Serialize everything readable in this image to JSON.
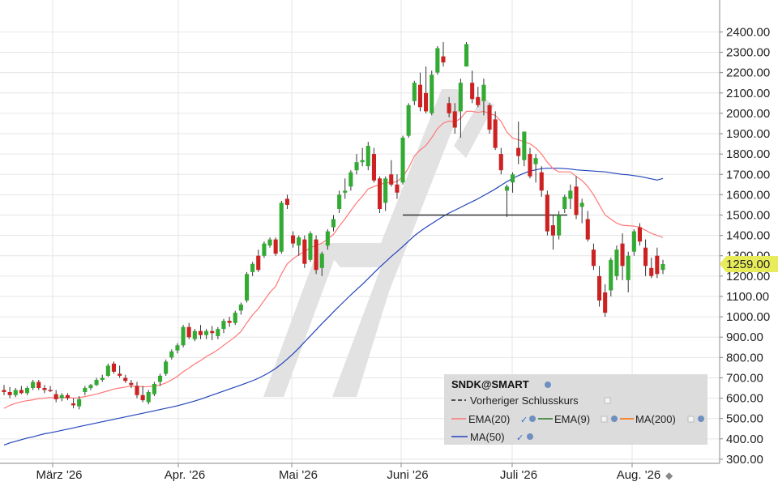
{
  "chart_data": {
    "type": "candlestick",
    "symbol": "SNDK@SMART",
    "y_range": [
      250,
      2420
    ],
    "y_ticks": [
      300,
      400,
      500,
      600,
      700,
      800,
      900,
      1000,
      1100,
      1200,
      1300,
      1400,
      1500,
      1600,
      1700,
      1800,
      1900,
      2000,
      2100,
      2200,
      2300,
      2400
    ],
    "y_tick_labels": [
      "300.00",
      "400.00",
      "500.00",
      "600.00",
      "700.00",
      "800.00",
      "900.00",
      "1000.00",
      "1100.00",
      "1200.00",
      "1300.00",
      "1400.00",
      "1500.00",
      "1600.00",
      "1700.00",
      "1800.00",
      "1900.00",
      "2000.00",
      "2100.00",
      "2200.00",
      "2300.00",
      "2400.00"
    ],
    "x_labels": [
      "März '26",
      "Apr. '26",
      "Mai '26",
      "Juni '26",
      "Juli '26",
      "Aug. '26"
    ],
    "last_price": 1259,
    "last_price_label": "1259.00",
    "colors": {
      "up": "#33aa33",
      "down": "#cc2222",
      "ema20": "#ff7777",
      "ema9": "#2a7a2a",
      "ma200": "#ff6a00",
      "ma50": "#2244bb",
      "tag": "#e8ec5a"
    },
    "grid": true,
    "candles": [
      {
        "o": 640,
        "h": 665,
        "l": 615,
        "c": 630
      },
      {
        "o": 630,
        "h": 655,
        "l": 600,
        "c": 615
      },
      {
        "o": 615,
        "h": 650,
        "l": 605,
        "c": 640
      },
      {
        "o": 640,
        "h": 660,
        "l": 620,
        "c": 625
      },
      {
        "o": 625,
        "h": 660,
        "l": 615,
        "c": 650
      },
      {
        "o": 650,
        "h": 690,
        "l": 640,
        "c": 680
      },
      {
        "o": 680,
        "h": 690,
        "l": 640,
        "c": 650
      },
      {
        "o": 650,
        "h": 665,
        "l": 625,
        "c": 640
      },
      {
        "o": 640,
        "h": 660,
        "l": 630,
        "c": 635
      },
      {
        "o": 620,
        "h": 640,
        "l": 580,
        "c": 595
      },
      {
        "o": 600,
        "h": 625,
        "l": 585,
        "c": 615
      },
      {
        "o": 615,
        "h": 625,
        "l": 590,
        "c": 600
      },
      {
        "o": 575,
        "h": 600,
        "l": 550,
        "c": 565
      },
      {
        "o": 560,
        "h": 610,
        "l": 545,
        "c": 595
      },
      {
        "o": 630,
        "h": 660,
        "l": 615,
        "c": 650
      },
      {
        "o": 650,
        "h": 670,
        "l": 640,
        "c": 665
      },
      {
        "o": 665,
        "h": 700,
        "l": 660,
        "c": 690
      },
      {
        "o": 690,
        "h": 715,
        "l": 680,
        "c": 700
      },
      {
        "o": 710,
        "h": 770,
        "l": 705,
        "c": 760
      },
      {
        "o": 770,
        "h": 780,
        "l": 720,
        "c": 730
      },
      {
        "o": 720,
        "h": 760,
        "l": 700,
        "c": 710
      },
      {
        "o": 700,
        "h": 715,
        "l": 675,
        "c": 685
      },
      {
        "o": 675,
        "h": 690,
        "l": 650,
        "c": 665
      },
      {
        "o": 660,
        "h": 680,
        "l": 600,
        "c": 615
      },
      {
        "o": 615,
        "h": 660,
        "l": 580,
        "c": 590
      },
      {
        "o": 580,
        "h": 640,
        "l": 570,
        "c": 630
      },
      {
        "o": 620,
        "h": 680,
        "l": 610,
        "c": 670
      },
      {
        "o": 680,
        "h": 720,
        "l": 660,
        "c": 710
      },
      {
        "o": 720,
        "h": 790,
        "l": 710,
        "c": 780
      },
      {
        "o": 800,
        "h": 840,
        "l": 790,
        "c": 830
      },
      {
        "o": 835,
        "h": 870,
        "l": 820,
        "c": 860
      },
      {
        "o": 860,
        "h": 960,
        "l": 850,
        "c": 950
      },
      {
        "o": 950,
        "h": 970,
        "l": 890,
        "c": 900
      },
      {
        "o": 890,
        "h": 940,
        "l": 880,
        "c": 930
      },
      {
        "o": 930,
        "h": 960,
        "l": 890,
        "c": 910
      },
      {
        "o": 910,
        "h": 940,
        "l": 890,
        "c": 930
      },
      {
        "o": 930,
        "h": 955,
        "l": 885,
        "c": 920
      },
      {
        "o": 905,
        "h": 950,
        "l": 890,
        "c": 940
      },
      {
        "o": 940,
        "h": 990,
        "l": 920,
        "c": 980
      },
      {
        "o": 980,
        "h": 1000,
        "l": 950,
        "c": 970
      },
      {
        "o": 970,
        "h": 1030,
        "l": 960,
        "c": 1020
      },
      {
        "o": 1030,
        "h": 1070,
        "l": 1010,
        "c": 1060
      },
      {
        "o": 1080,
        "h": 1220,
        "l": 1070,
        "c": 1210
      },
      {
        "o": 1220,
        "h": 1270,
        "l": 1200,
        "c": 1260
      },
      {
        "o": 1300,
        "h": 1330,
        "l": 1220,
        "c": 1230
      },
      {
        "o": 1300,
        "h": 1370,
        "l": 1290,
        "c": 1360
      },
      {
        "o": 1350,
        "h": 1390,
        "l": 1340,
        "c": 1380
      },
      {
        "o": 1380,
        "h": 1390,
        "l": 1300,
        "c": 1310
      },
      {
        "o": 1320,
        "h": 1570,
        "l": 1310,
        "c": 1560
      },
      {
        "o": 1580,
        "h": 1600,
        "l": 1530,
        "c": 1550
      },
      {
        "o": 1400,
        "h": 1420,
        "l": 1340,
        "c": 1360
      },
      {
        "o": 1350,
        "h": 1400,
        "l": 1300,
        "c": 1390
      },
      {
        "o": 1380,
        "h": 1400,
        "l": 1240,
        "c": 1260
      },
      {
        "o": 1280,
        "h": 1420,
        "l": 1270,
        "c": 1410
      },
      {
        "o": 1380,
        "h": 1400,
        "l": 1210,
        "c": 1230
      },
      {
        "o": 1240,
        "h": 1320,
        "l": 1200,
        "c": 1310
      },
      {
        "o": 1350,
        "h": 1430,
        "l": 1330,
        "c": 1420
      },
      {
        "o": 1440,
        "h": 1500,
        "l": 1420,
        "c": 1480
      },
      {
        "o": 1530,
        "h": 1620,
        "l": 1510,
        "c": 1600
      },
      {
        "o": 1610,
        "h": 1680,
        "l": 1580,
        "c": 1620
      },
      {
        "o": 1640,
        "h": 1720,
        "l": 1620,
        "c": 1710
      },
      {
        "o": 1720,
        "h": 1800,
        "l": 1700,
        "c": 1760
      },
      {
        "o": 1760,
        "h": 1830,
        "l": 1740,
        "c": 1770
      },
      {
        "o": 1740,
        "h": 1860,
        "l": 1720,
        "c": 1840
      },
      {
        "o": 1800,
        "h": 1830,
        "l": 1660,
        "c": 1670
      },
      {
        "o": 1680,
        "h": 1690,
        "l": 1510,
        "c": 1530
      },
      {
        "o": 1560,
        "h": 1690,
        "l": 1520,
        "c": 1680
      },
      {
        "o": 1700,
        "h": 1770,
        "l": 1640,
        "c": 1650
      },
      {
        "o": 1650,
        "h": 1700,
        "l": 1580,
        "c": 1610
      },
      {
        "o": 1660,
        "h": 1890,
        "l": 1650,
        "c": 1880
      },
      {
        "o": 1890,
        "h": 2050,
        "l": 1880,
        "c": 2040
      },
      {
        "o": 2060,
        "h": 2160,
        "l": 2040,
        "c": 2150
      },
      {
        "o": 2140,
        "h": 2200,
        "l": 2010,
        "c": 2030
      },
      {
        "o": 2100,
        "h": 2230,
        "l": 2000,
        "c": 2010
      },
      {
        "o": 2000,
        "h": 2210,
        "l": 1990,
        "c": 2190
      },
      {
        "o": 2200,
        "h": 2330,
        "l": 2190,
        "c": 2320
      },
      {
        "o": 2280,
        "h": 2350,
        "l": 2230,
        "c": 2250
      },
      {
        "o": 2050,
        "h": 2080,
        "l": 1980,
        "c": 2000
      },
      {
        "o": 2010,
        "h": 2050,
        "l": 1900,
        "c": 1930
      },
      {
        "o": 2010,
        "h": 2170,
        "l": 1880,
        "c": 2150
      },
      {
        "o": 2230,
        "h": 2350,
        "l": 2230,
        "c": 2340
      },
      {
        "o": 2150,
        "h": 2210,
        "l": 2050,
        "c": 2070
      },
      {
        "o": 2080,
        "h": 2130,
        "l": 2030,
        "c": 2040
      },
      {
        "o": 2060,
        "h": 2170,
        "l": 1990,
        "c": 2140
      },
      {
        "o": 2040,
        "h": 2050,
        "l": 1900,
        "c": 1920
      },
      {
        "o": 1970,
        "h": 2010,
        "l": 1820,
        "c": 1830
      },
      {
        "o": 1800,
        "h": 1830,
        "l": 1700,
        "c": 1720
      },
      {
        "o": 1620,
        "h": 1650,
        "l": 1490,
        "c": 1640
      },
      {
        "o": 1660,
        "h": 1710,
        "l": 1610,
        "c": 1700
      },
      {
        "o": 1830,
        "h": 1960,
        "l": 1750,
        "c": 1790
      },
      {
        "o": 1770,
        "h": 1910,
        "l": 1740,
        "c": 1910
      },
      {
        "o": 1800,
        "h": 1830,
        "l": 1680,
        "c": 1690
      },
      {
        "o": 1750,
        "h": 1800,
        "l": 1660,
        "c": 1780
      },
      {
        "o": 1710,
        "h": 1740,
        "l": 1590,
        "c": 1620
      },
      {
        "o": 1600,
        "h": 1620,
        "l": 1400,
        "c": 1420
      },
      {
        "o": 1450,
        "h": 1500,
        "l": 1330,
        "c": 1400
      },
      {
        "o": 1400,
        "h": 1520,
        "l": 1380,
        "c": 1500
      },
      {
        "o": 1530,
        "h": 1600,
        "l": 1510,
        "c": 1590
      },
      {
        "o": 1580,
        "h": 1650,
        "l": 1530,
        "c": 1620
      },
      {
        "o": 1640,
        "h": 1690,
        "l": 1480,
        "c": 1500
      },
      {
        "o": 1540,
        "h": 1580,
        "l": 1460,
        "c": 1560
      },
      {
        "o": 1480,
        "h": 1520,
        "l": 1370,
        "c": 1380
      },
      {
        "o": 1330,
        "h": 1360,
        "l": 1230,
        "c": 1250
      },
      {
        "o": 1200,
        "h": 1250,
        "l": 1050,
        "c": 1080
      },
      {
        "o": 1120,
        "h": 1160,
        "l": 1000,
        "c": 1020
      },
      {
        "o": 1130,
        "h": 1290,
        "l": 1100,
        "c": 1280
      },
      {
        "o": 1200,
        "h": 1350,
        "l": 1180,
        "c": 1330
      },
      {
        "o": 1360,
        "h": 1410,
        "l": 1180,
        "c": 1250
      },
      {
        "o": 1180,
        "h": 1320,
        "l": 1120,
        "c": 1300
      },
      {
        "o": 1320,
        "h": 1430,
        "l": 1300,
        "c": 1420
      },
      {
        "o": 1440,
        "h": 1460,
        "l": 1350,
        "c": 1370
      },
      {
        "o": 1340,
        "h": 1380,
        "l": 1200,
        "c": 1250
      },
      {
        "o": 1240,
        "h": 1290,
        "l": 1190,
        "c": 1200
      },
      {
        "o": 1300,
        "h": 1340,
        "l": 1190,
        "c": 1210
      },
      {
        "o": 1230,
        "h": 1280,
        "l": 1210,
        "c": 1259
      }
    ],
    "ema20": [
      550,
      565,
      575,
      582,
      588,
      592,
      598,
      600,
      603,
      602,
      603,
      604,
      600,
      603,
      608,
      614,
      620,
      628,
      636,
      645,
      650,
      655,
      660,
      659,
      656,
      657,
      660,
      665,
      675,
      690,
      707,
      730,
      748,
      768,
      785,
      805,
      820,
      838,
      860,
      880,
      902,
      928,
      970,
      1010,
      1040,
      1080,
      1120,
      1150,
      1210,
      1260,
      1285,
      1305,
      1320,
      1340,
      1350,
      1362,
      1382,
      1405,
      1445,
      1482,
      1522,
      1560,
      1592,
      1628,
      1640,
      1650,
      1658,
      1660,
      1664,
      1690,
      1732,
      1790,
      1820,
      1842,
      1880,
      1925,
      1952,
      1962,
      1958,
      1975,
      2010,
      2010,
      2004,
      2010,
      1998,
      1990,
      1960,
      1908,
      1878,
      1870,
      1860,
      1850,
      1830,
      1800,
      1760,
      1728,
      1712,
      1712,
      1712,
      1690,
      1670,
      1640,
      1600,
      1550,
      1500,
      1480,
      1460,
      1450,
      1448,
      1446,
      1440,
      1425,
      1410,
      1400,
      1390
    ],
    "ma50": [
      370,
      380,
      388,
      396,
      404,
      410,
      418,
      425,
      430,
      436,
      442,
      448,
      454,
      460,
      466,
      472,
      478,
      484,
      490,
      496,
      502,
      508,
      514,
      520,
      526,
      532,
      538,
      544,
      550,
      556,
      563,
      570,
      578,
      586,
      595,
      605,
      615,
      625,
      635,
      645,
      655,
      665,
      675,
      686,
      698,
      712,
      728,
      746,
      768,
      792,
      818,
      846,
      876,
      906,
      936,
      966,
      995,
      1024,
      1052,
      1080,
      1108,
      1134,
      1160,
      1188,
      1216,
      1244,
      1270,
      1296,
      1320,
      1346,
      1372,
      1398,
      1420,
      1440,
      1458,
      1476,
      1494,
      1510,
      1524,
      1538,
      1552,
      1566,
      1580,
      1596,
      1612,
      1628,
      1646,
      1664,
      1680,
      1694,
      1706,
      1716,
      1722,
      1728,
      1730,
      1730,
      1730,
      1728,
      1726,
      1722,
      1720,
      1718,
      1716,
      1714,
      1712,
      1708,
      1704,
      1700,
      1698,
      1694,
      1690,
      1684,
      1678,
      1672,
      1680
    ],
    "support_level": 1500,
    "legend": {
      "title": "SNDK@SMART",
      "prev_close_label": "Vorheriger Schlusskurs",
      "items": [
        {
          "label": "EMA(20)",
          "color": "#ff7777"
        },
        {
          "label": "EMA(9)",
          "color": "#2a7a2a"
        },
        {
          "label": "MA(200)",
          "color": "#ff6a00"
        },
        {
          "label": "MA(50)",
          "color": "#2244bb"
        }
      ]
    }
  }
}
